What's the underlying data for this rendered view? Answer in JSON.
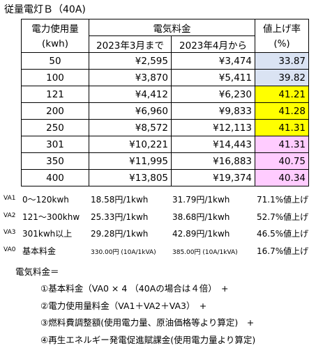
{
  "title": "従量電灯Ｂ（40A)",
  "table": {
    "header": {
      "usage": "電力使用量",
      "usage_unit": "(kwh)",
      "price": "電気料金",
      "before": "2023年3月まで",
      "after": "2023年4月から",
      "rate": "値上げ率",
      "rate_unit": "(%)"
    },
    "rows": [
      [
        "50",
        "¥2,595",
        "¥3,474",
        "33.87"
      ],
      [
        "100",
        "¥3,870",
        "¥5,411",
        "39.82"
      ],
      [
        "121",
        "¥4,412",
        "¥6,230",
        "41.21"
      ],
      [
        "200",
        "¥6,960",
        "¥9,833",
        "41.28"
      ],
      [
        "250",
        "¥8,572",
        "¥12,113",
        "41.31"
      ],
      [
        "301",
        "¥10,221",
        "¥14,443",
        "41.31"
      ],
      [
        "350",
        "¥11,995",
        "¥16,883",
        "40.75"
      ],
      [
        "400",
        "¥13,805",
        "¥19,374",
        "40.34"
      ]
    ]
  },
  "notes": [
    [
      "VA1",
      "0～120kwh",
      "18.58円/1kwh",
      "31.79円/1kwh",
      "71.1%値上げ"
    ],
    [
      "VA2",
      "121～300khw",
      "25.33円/1kwh",
      "38.68円/1kwh",
      "52.7%値上げ"
    ],
    [
      "VA3",
      "301kwh以上",
      "29.28円/1kwh",
      "42.89円/1kwh",
      "46.5%値上げ"
    ],
    [
      "VA0",
      "基本料金",
      "330.00円 (10A/1kVA)",
      "385.00円 (10A/1kVA)",
      "16.7%値上げ"
    ]
  ],
  "formula": {
    "heading": "電気料金＝",
    "lines": [
      "①基本料金（VA0 × 4 （40Aの場合は４倍）　+",
      "②電力使用量料金（VA1＋VA2＋VA3）　+",
      "③燃料費調整額(使用電力量、原油価格等より算定)　+",
      "④再生エネルギー発電促進賦課金(使用電力量より算定)"
    ]
  }
}
